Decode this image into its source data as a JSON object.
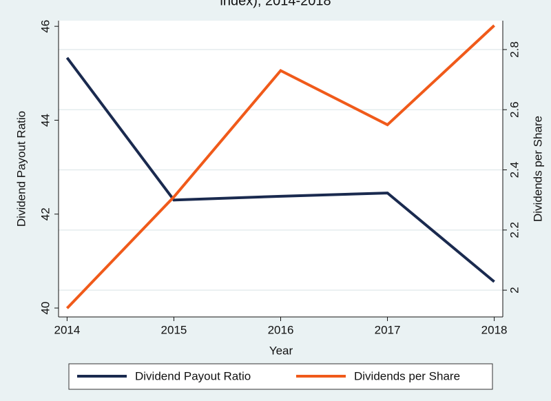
{
  "chart_data": {
    "type": "line",
    "title": "index), 2014-2018",
    "x_label": "Year",
    "y_label": "Dividend Payout Ratio",
    "y2_label": "Dividends per Share",
    "x": [
      2014,
      2015,
      2016,
      2017,
      2018
    ],
    "xlim": [
      2013.92,
      2018.08
    ],
    "xticks": [
      2014,
      2015,
      2016,
      2017,
      2018
    ],
    "ylim": [
      39.81,
      46.12
    ],
    "yticks": [
      40,
      42,
      44,
      46
    ],
    "y2lim": [
      1.911,
      2.896
    ],
    "y2ticks": [
      2,
      2.2,
      2.4,
      2.6,
      2.8
    ],
    "grid": true,
    "legend": "bottom",
    "series": [
      {
        "name": "Dividend Payout Ratio",
        "color": "#1a2a4f",
        "values": [
          45.33,
          42.3,
          42.38,
          42.45,
          40.56
        ]
      },
      {
        "name": "Dividends per Share",
        "color": "#f05a1a",
        "axis": "y2",
        "values": [
          1.94,
          2.31,
          2.73,
          2.55,
          2.88
        ]
      }
    ]
  }
}
